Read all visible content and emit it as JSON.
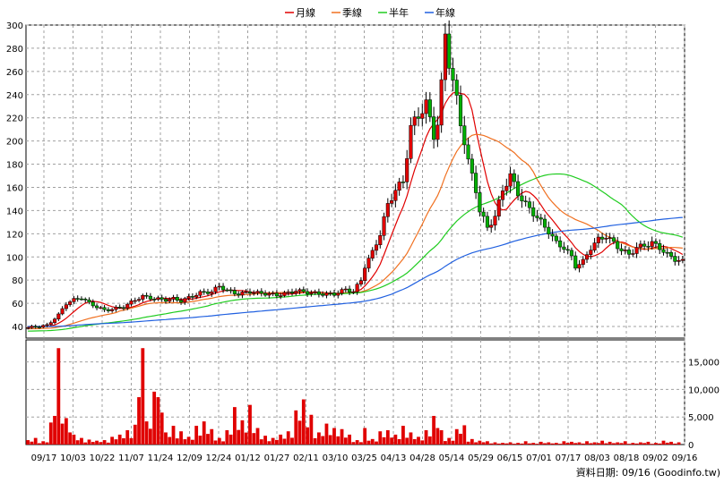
{
  "legend": {
    "items": [
      {
        "label": "月線",
        "color": "#e00000"
      },
      {
        "label": "季線",
        "color": "#f07020"
      },
      {
        "label": "半年",
        "color": "#20cc20"
      },
      {
        "label": "年線",
        "color": "#2060e0"
      }
    ]
  },
  "source_note": "資料日期: 09/16 (Goodinfo.tw)",
  "colors": {
    "up_candle": "#e00000",
    "down_candle": "#00b000",
    "volume_bar": "#e00000",
    "grid": "#a0a0a0",
    "frame": "#000000"
  },
  "chart_data": {
    "type": "candlestick+line+volume",
    "x_tick_labels": [
      "09/17",
      "10/03",
      "10/22",
      "11/07",
      "11/24",
      "12/09",
      "12/24",
      "01/12",
      "01/27",
      "02/11",
      "03/10",
      "03/25",
      "04/13",
      "04/28",
      "05/14",
      "05/29",
      "06/15",
      "07/01",
      "07/17",
      "08/03",
      "08/18",
      "09/02",
      "09/16"
    ],
    "price_axis": {
      "ylim": [
        30,
        300
      ],
      "ticks": [
        40,
        60,
        80,
        100,
        120,
        140,
        160,
        180,
        200,
        220,
        240,
        260,
        280,
        300
      ],
      "grid": true
    },
    "volume_axis": {
      "ylim": [
        0,
        19000
      ],
      "ticks": [
        0,
        5000,
        10000,
        15000
      ],
      "tick_labels": [
        "0",
        "5,000",
        "10,000",
        "15,000"
      ],
      "grid": true
    },
    "price_anchors": [
      [
        0,
        39
      ],
      [
        5,
        41
      ],
      [
        8,
        50
      ],
      [
        10,
        60
      ],
      [
        12,
        63
      ],
      [
        14,
        65
      ],
      [
        16,
        60
      ],
      [
        18,
        57
      ],
      [
        20,
        54
      ],
      [
        22,
        55
      ],
      [
        25,
        57
      ],
      [
        28,
        63
      ],
      [
        30,
        66
      ],
      [
        33,
        64
      ],
      [
        36,
        63
      ],
      [
        38,
        64
      ],
      [
        40,
        62
      ],
      [
        42,
        65
      ],
      [
        45,
        69
      ],
      [
        48,
        70
      ],
      [
        50,
        75
      ],
      [
        52,
        71
      ],
      [
        55,
        68
      ],
      [
        58,
        70
      ],
      [
        60,
        69
      ],
      [
        63,
        68
      ],
      [
        65,
        67
      ],
      [
        68,
        69
      ],
      [
        70,
        71
      ],
      [
        72,
        70
      ],
      [
        74,
        69
      ],
      [
        77,
        68
      ],
      [
        80,
        68
      ],
      [
        83,
        72
      ],
      [
        85,
        70
      ],
      [
        87,
        80
      ],
      [
        88,
        92
      ],
      [
        90,
        104
      ],
      [
        92,
        120
      ],
      [
        94,
        145
      ],
      [
        96,
        158
      ],
      [
        98,
        165
      ],
      [
        100,
        212
      ],
      [
        102,
        222
      ],
      [
        104,
        232
      ],
      [
        106,
        205
      ],
      [
        107,
        215
      ],
      [
        108,
        248
      ],
      [
        109,
        292
      ],
      [
        110,
        268
      ],
      [
        112,
        235
      ],
      [
        113,
        215
      ],
      [
        114,
        200
      ],
      [
        115,
        182
      ],
      [
        117,
        158
      ],
      [
        118,
        140
      ],
      [
        120,
        125
      ],
      [
        122,
        135
      ],
      [
        124,
        158
      ],
      [
        126,
        170
      ],
      [
        128,
        155
      ],
      [
        130,
        145
      ],
      [
        132,
        138
      ],
      [
        134,
        130
      ],
      [
        136,
        122
      ],
      [
        138,
        112
      ],
      [
        140,
        108
      ],
      [
        142,
        100
      ],
      [
        143,
        92
      ],
      [
        145,
        96
      ],
      [
        147,
        108
      ],
      [
        149,
        115
      ],
      [
        151,
        118
      ],
      [
        153,
        112
      ],
      [
        155,
        106
      ],
      [
        157,
        102
      ],
      [
        159,
        108
      ],
      [
        161,
        110
      ],
      [
        163,
        112
      ],
      [
        165,
        108
      ],
      [
        167,
        102
      ],
      [
        169,
        98
      ],
      [
        171,
        96
      ]
    ],
    "volume_spikes": [
      [
        0,
        800
      ],
      [
        2,
        1200
      ],
      [
        4,
        600
      ],
      [
        6,
        4000
      ],
      [
        7,
        5200
      ],
      [
        8,
        17500
      ],
      [
        9,
        3800
      ],
      [
        10,
        4800
      ],
      [
        11,
        2200
      ],
      [
        12,
        1800
      ],
      [
        14,
        1200
      ],
      [
        16,
        900
      ],
      [
        18,
        700
      ],
      [
        20,
        800
      ],
      [
        22,
        1400
      ],
      [
        24,
        1800
      ],
      [
        26,
        2600
      ],
      [
        28,
        3600
      ],
      [
        29,
        8600
      ],
      [
        30,
        17500
      ],
      [
        31,
        4200
      ],
      [
        33,
        9600
      ],
      [
        34,
        8600
      ],
      [
        35,
        5800
      ],
      [
        36,
        2200
      ],
      [
        38,
        3400
      ],
      [
        40,
        2400
      ],
      [
        42,
        1400
      ],
      [
        44,
        3400
      ],
      [
        46,
        4200
      ],
      [
        48,
        2800
      ],
      [
        50,
        1200
      ],
      [
        52,
        2600
      ],
      [
        54,
        6800
      ],
      [
        56,
        4400
      ],
      [
        58,
        7200
      ],
      [
        60,
        3000
      ],
      [
        62,
        1600
      ],
      [
        64,
        1200
      ],
      [
        66,
        1800
      ],
      [
        68,
        2400
      ],
      [
        70,
        6200
      ],
      [
        72,
        8200
      ],
      [
        74,
        5400
      ],
      [
        76,
        2200
      ],
      [
        78,
        3800
      ],
      [
        80,
        3000
      ],
      [
        82,
        2800
      ],
      [
        84,
        1800
      ],
      [
        86,
        800
      ],
      [
        88,
        3000
      ],
      [
        90,
        1000
      ],
      [
        92,
        2400
      ],
      [
        94,
        2600
      ],
      [
        96,
        1800
      ],
      [
        98,
        3400
      ],
      [
        100,
        2200
      ],
      [
        102,
        1400
      ],
      [
        104,
        2600
      ],
      [
        106,
        5200
      ],
      [
        107,
        3000
      ],
      [
        108,
        2600
      ],
      [
        110,
        1200
      ],
      [
        112,
        2800
      ],
      [
        114,
        3500
      ],
      [
        116,
        1000
      ],
      [
        118,
        700
      ],
      [
        120,
        600
      ],
      [
        122,
        400
      ],
      [
        124,
        300
      ],
      [
        126,
        400
      ],
      [
        128,
        300
      ],
      [
        130,
        600
      ],
      [
        132,
        300
      ],
      [
        134,
        500
      ],
      [
        136,
        400
      ],
      [
        138,
        300
      ],
      [
        140,
        600
      ],
      [
        142,
        500
      ],
      [
        144,
        400
      ],
      [
        146,
        600
      ],
      [
        148,
        400
      ],
      [
        150,
        700
      ],
      [
        152,
        500
      ],
      [
        154,
        400
      ],
      [
        156,
        600
      ],
      [
        158,
        300
      ],
      [
        160,
        400
      ],
      [
        162,
        500
      ],
      [
        164,
        300
      ],
      [
        166,
        700
      ],
      [
        168,
        500
      ],
      [
        170,
        400
      ]
    ]
  }
}
